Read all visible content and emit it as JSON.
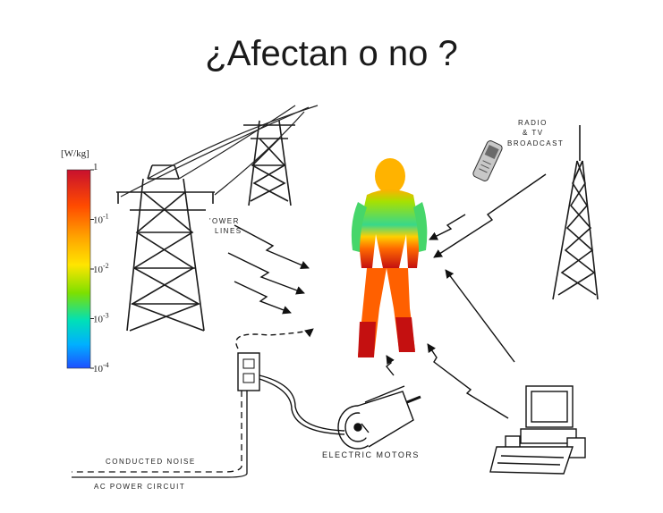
{
  "title": "¿Afectan o no ?",
  "colorbar": {
    "unit": "[W/kg]",
    "ticks": [
      "1",
      "10-1",
      "10-2",
      "10-3",
      "10-4"
    ],
    "tick_base": [
      "1",
      "10",
      "10",
      "10",
      "10"
    ],
    "tick_exp": [
      "",
      "-1",
      "-2",
      "-3",
      "-4"
    ],
    "colors": [
      "#c8102e",
      "#ff7a00",
      "#ffd400",
      "#6fe000",
      "#00e6b0",
      "#00b4ff",
      "#1e4fff"
    ]
  },
  "labels": {
    "power_lines": "POWER LINES",
    "power_lines_1": "'OWER",
    "power_lines_2": "LINES",
    "radio_1": "RADIO",
    "radio_2": "& TV",
    "radio_3": "BROADCAST",
    "electric_motors": "ELECTRIC MOTORS",
    "conducted_noise": "CONDUCTED NOISE",
    "ac_power": "AC POWER CIRCUIT"
  }
}
